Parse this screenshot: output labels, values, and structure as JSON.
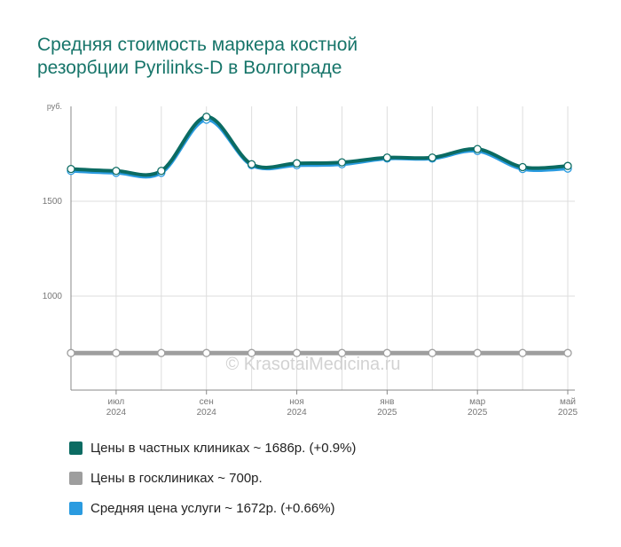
{
  "title_lines": [
    "Средняя стоимость маркера костной",
    "резорбции Pyrilinks-D в Волгограде"
  ],
  "watermark": "© KrasotaiMedicina.ru",
  "legend": [
    {
      "label": "Цены в частных клиниках ~ 1686р. (+0.9%)",
      "color": "#0b6b62"
    },
    {
      "label": "Цены в госклиниках ~ 700р.",
      "color": "#9e9e9e"
    },
    {
      "label": "Средняя цена услуги ~ 1672р. (+0.66%)",
      "color": "#2a9be0"
    }
  ],
  "chart_data": {
    "type": "line",
    "ylabel": "руб.",
    "ylim": [
      500,
      2000
    ],
    "y_ticks": [
      1000,
      1500
    ],
    "grid": true,
    "x_ticks": [
      {
        "month": "июл",
        "year": "2024"
      },
      {
        "month": "сен",
        "year": "2024"
      },
      {
        "month": "ноя",
        "year": "2024"
      },
      {
        "month": "янв",
        "year": "2025"
      },
      {
        "month": "мар",
        "year": "2025"
      },
      {
        "month": "май",
        "year": "2025"
      }
    ],
    "x_points": [
      "2024-06",
      "2024-07",
      "2024-08",
      "2024-09",
      "2024-10",
      "2024-11",
      "2024-12",
      "2025-01",
      "2025-02",
      "2025-03",
      "2025-04",
      "2025-05"
    ],
    "series": [
      {
        "name": "Цены в частных клиниках",
        "color": "#0b6b62",
        "values": [
          1670,
          1660,
          1660,
          1945,
          1695,
          1700,
          1705,
          1730,
          1730,
          1775,
          1680,
          1686
        ]
      },
      {
        "name": "Цены в госклиниках",
        "color": "#9e9e9e",
        "values": [
          700,
          700,
          700,
          700,
          700,
          700,
          700,
          700,
          700,
          700,
          700,
          700
        ]
      },
      {
        "name": "Средняя цена услуги",
        "color": "#2a9be0",
        "values": [
          1660,
          1650,
          1650,
          1930,
          1690,
          1690,
          1695,
          1725,
          1725,
          1765,
          1670,
          1672
        ]
      }
    ]
  }
}
